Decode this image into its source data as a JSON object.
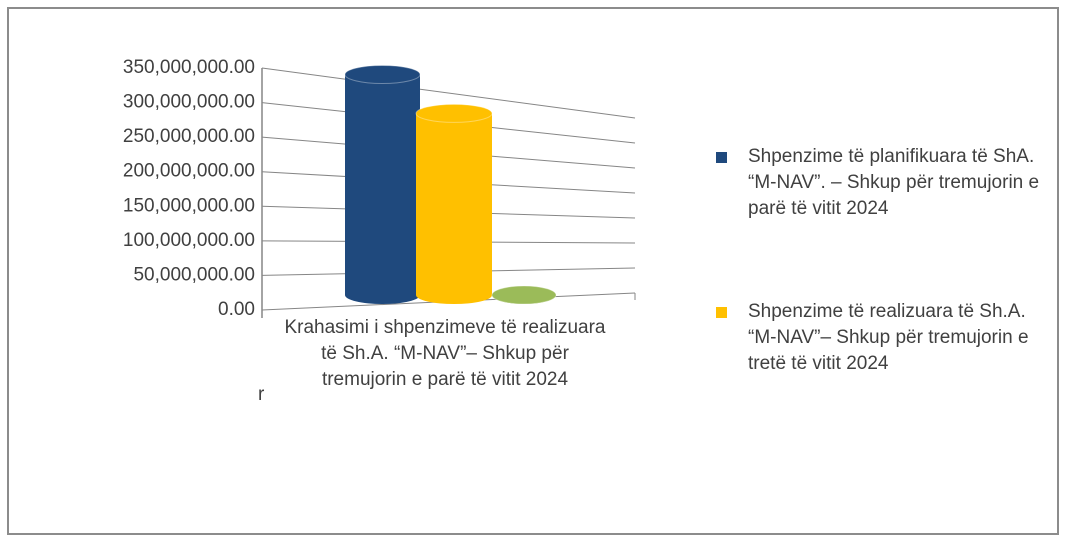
{
  "chart_data": {
    "type": "bar",
    "categories": [
      "Krahasimi i shpenzimeve të realizuara të Sh.A. “M-NAV”– Shkup për tremujorin e parë të vitit 2024"
    ],
    "series": [
      {
        "name": "Shpenzime  të planifikuara të ShA.  “M-NAV”. – Shkup për tremujorin e parë të vitit 2024",
        "color": "#1f497d",
        "values": [
          340000000
        ]
      },
      {
        "name": "Shpenzime  të realizuara të Sh.A. “M-NAV”– Shkup për tremujorin e tretë të vitit 2024",
        "color": "#ffc000",
        "values": [
          280000000
        ]
      },
      {
        "color": "#9bbb59",
        "values": [
          0
        ]
      }
    ],
    "ylim": [
      0,
      350000000
    ],
    "yticks": [
      {
        "value": 0,
        "label": "0.00"
      },
      {
        "value": 50000000,
        "label": "50,000,000.00"
      },
      {
        "value": 100000000,
        "label": "100,000,000.00"
      },
      {
        "value": 150000000,
        "label": "150,000,000.00"
      },
      {
        "value": 200000000,
        "label": "200,000,000.00"
      },
      {
        "value": 250000000,
        "label": "250,000,000.00"
      },
      {
        "value": 300000000,
        "label": "300,000,000.00"
      },
      {
        "value": 350000000,
        "label": "350,000,000.00"
      }
    ],
    "grid": true,
    "annotation": "r"
  }
}
